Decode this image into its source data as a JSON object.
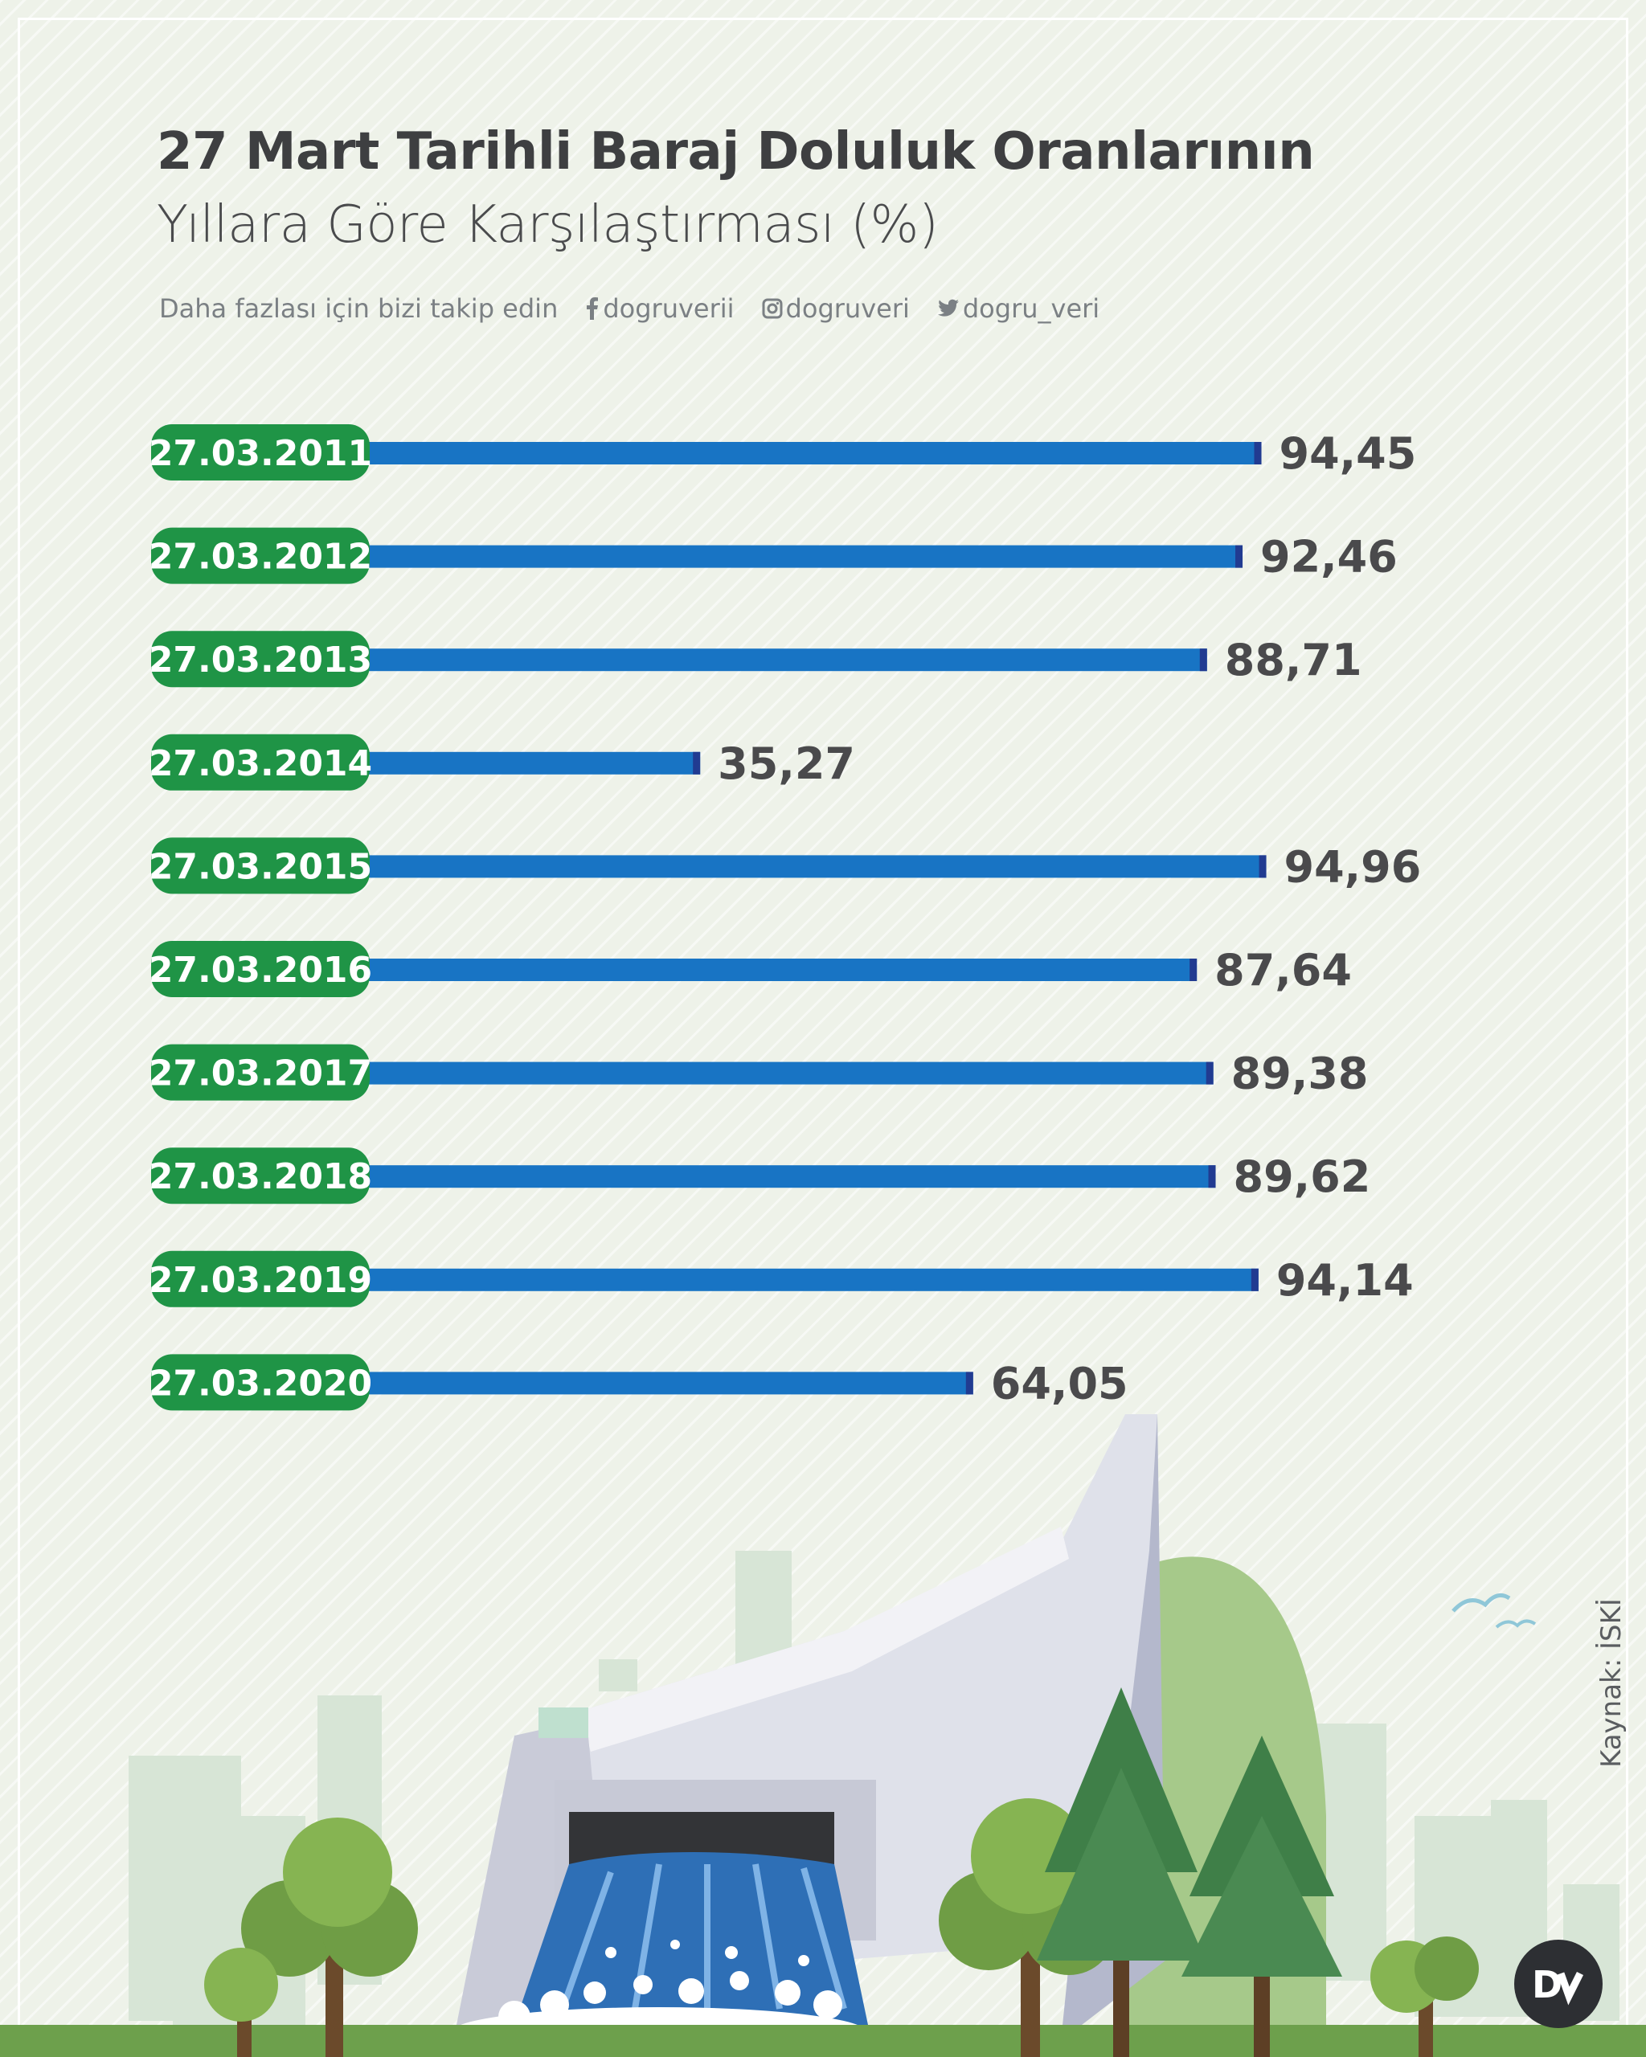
{
  "title": {
    "line1_normal": "27 Mart Tarihli ",
    "line1_bold": "Baraj Doluluk Oranlarının",
    "line2": "Yıllara Göre Karşılaştırması (%)"
  },
  "follow": {
    "text": "Daha fazlası için bizi takip edin",
    "facebook": "dogruverii",
    "instagram": "dogruveri",
    "twitter": "dogru_veri"
  },
  "source": "Kaynak: İSKİ",
  "colors": {
    "label_green": "#1f9446",
    "bar_blue": "#1874c4",
    "bar_cap": "#213b91",
    "value_text": "#4a4a4c"
  },
  "icons": [
    "facebook-icon",
    "instagram-icon",
    "twitter-icon",
    "dv-logo-icon",
    "bird-icon"
  ],
  "chart_data": {
    "type": "bar",
    "orientation": "horizontal",
    "categories": [
      "27.03.2011",
      "27.03.2012",
      "27.03.2013",
      "27.03.2014",
      "27.03.2015",
      "27.03.2016",
      "27.03.2017",
      "27.03.2018",
      "27.03.2019",
      "27.03.2020"
    ],
    "values": [
      94.45,
      92.46,
      88.71,
      35.27,
      94.96,
      87.64,
      89.38,
      89.62,
      94.14,
      64.05
    ],
    "value_labels": [
      "94,45",
      "92,46",
      "88,71",
      "35,27",
      "94,96",
      "87,64",
      "89,38",
      "89,62",
      "94,14",
      "64,05"
    ],
    "xlim": [
      0,
      100
    ],
    "grid": false
  }
}
